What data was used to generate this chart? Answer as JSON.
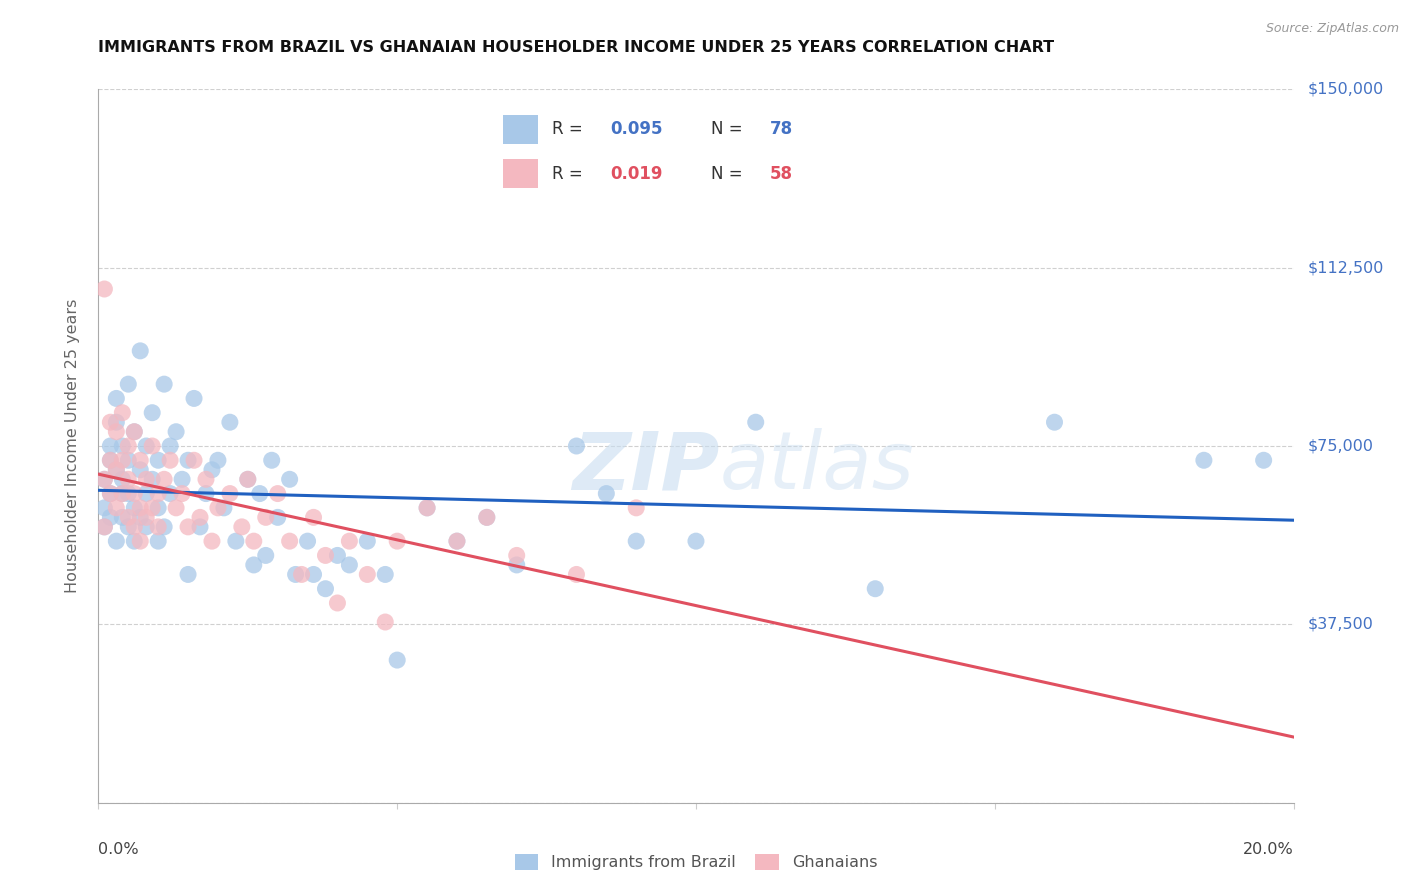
{
  "title": "IMMIGRANTS FROM BRAZIL VS GHANAIAN HOUSEHOLDER INCOME UNDER 25 YEARS CORRELATION CHART",
  "source": "Source: ZipAtlas.com",
  "ylabel": "Householder Income Under 25 years",
  "xlim": [
    0.0,
    0.2
  ],
  "ylim": [
    0,
    150000
  ],
  "yticks": [
    0,
    37500,
    75000,
    112500,
    150000
  ],
  "ytick_labels": [
    "",
    "$37,500",
    "$75,000",
    "$112,500",
    "$150,000"
  ],
  "color_brazil": "#a8c8e8",
  "color_ghana": "#f4b8c0",
  "color_trendline_brazil": "#2060c0",
  "color_trendline_ghana": "#e05060",
  "watermark_zip": "ZIP",
  "watermark_atlas": "atlas",
  "brazil_x": [
    0.001,
    0.001,
    0.001,
    0.002,
    0.002,
    0.002,
    0.002,
    0.003,
    0.003,
    0.003,
    0.003,
    0.004,
    0.004,
    0.004,
    0.004,
    0.005,
    0.005,
    0.005,
    0.005,
    0.006,
    0.006,
    0.006,
    0.007,
    0.007,
    0.007,
    0.008,
    0.008,
    0.008,
    0.009,
    0.009,
    0.01,
    0.01,
    0.01,
    0.011,
    0.011,
    0.012,
    0.012,
    0.013,
    0.014,
    0.015,
    0.015,
    0.016,
    0.017,
    0.018,
    0.019,
    0.02,
    0.021,
    0.022,
    0.023,
    0.025,
    0.026,
    0.027,
    0.028,
    0.029,
    0.03,
    0.032,
    0.033,
    0.035,
    0.036,
    0.038,
    0.04,
    0.042,
    0.045,
    0.048,
    0.05,
    0.055,
    0.06,
    0.065,
    0.07,
    0.08,
    0.085,
    0.09,
    0.1,
    0.11,
    0.13,
    0.16,
    0.185,
    0.195
  ],
  "brazil_y": [
    62000,
    68000,
    58000,
    72000,
    65000,
    75000,
    60000,
    70000,
    80000,
    55000,
    85000,
    68000,
    75000,
    60000,
    65000,
    72000,
    58000,
    88000,
    65000,
    78000,
    62000,
    55000,
    95000,
    70000,
    60000,
    75000,
    65000,
    58000,
    82000,
    68000,
    72000,
    55000,
    62000,
    88000,
    58000,
    75000,
    65000,
    78000,
    68000,
    72000,
    48000,
    85000,
    58000,
    65000,
    70000,
    72000,
    62000,
    80000,
    55000,
    68000,
    50000,
    65000,
    52000,
    72000,
    60000,
    68000,
    48000,
    55000,
    48000,
    45000,
    52000,
    50000,
    55000,
    48000,
    30000,
    62000,
    55000,
    60000,
    50000,
    75000,
    65000,
    55000,
    55000,
    80000,
    45000,
    80000,
    72000,
    72000
  ],
  "ghana_x": [
    0.001,
    0.001,
    0.001,
    0.002,
    0.002,
    0.002,
    0.003,
    0.003,
    0.003,
    0.004,
    0.004,
    0.004,
    0.005,
    0.005,
    0.005,
    0.006,
    0.006,
    0.006,
    0.007,
    0.007,
    0.007,
    0.008,
    0.008,
    0.009,
    0.009,
    0.01,
    0.01,
    0.011,
    0.012,
    0.013,
    0.014,
    0.015,
    0.016,
    0.017,
    0.018,
    0.019,
    0.02,
    0.022,
    0.024,
    0.025,
    0.026,
    0.028,
    0.03,
    0.032,
    0.034,
    0.036,
    0.038,
    0.04,
    0.042,
    0.045,
    0.048,
    0.05,
    0.055,
    0.06,
    0.065,
    0.07,
    0.08,
    0.09
  ],
  "ghana_y": [
    108000,
    68000,
    58000,
    80000,
    72000,
    65000,
    78000,
    70000,
    62000,
    82000,
    72000,
    65000,
    75000,
    68000,
    60000,
    78000,
    65000,
    58000,
    72000,
    62000,
    55000,
    68000,
    60000,
    75000,
    62000,
    65000,
    58000,
    68000,
    72000,
    62000,
    65000,
    58000,
    72000,
    60000,
    68000,
    55000,
    62000,
    65000,
    58000,
    68000,
    55000,
    60000,
    65000,
    55000,
    48000,
    60000,
    52000,
    42000,
    55000,
    48000,
    38000,
    55000,
    62000,
    55000,
    60000,
    52000,
    48000,
    62000
  ]
}
